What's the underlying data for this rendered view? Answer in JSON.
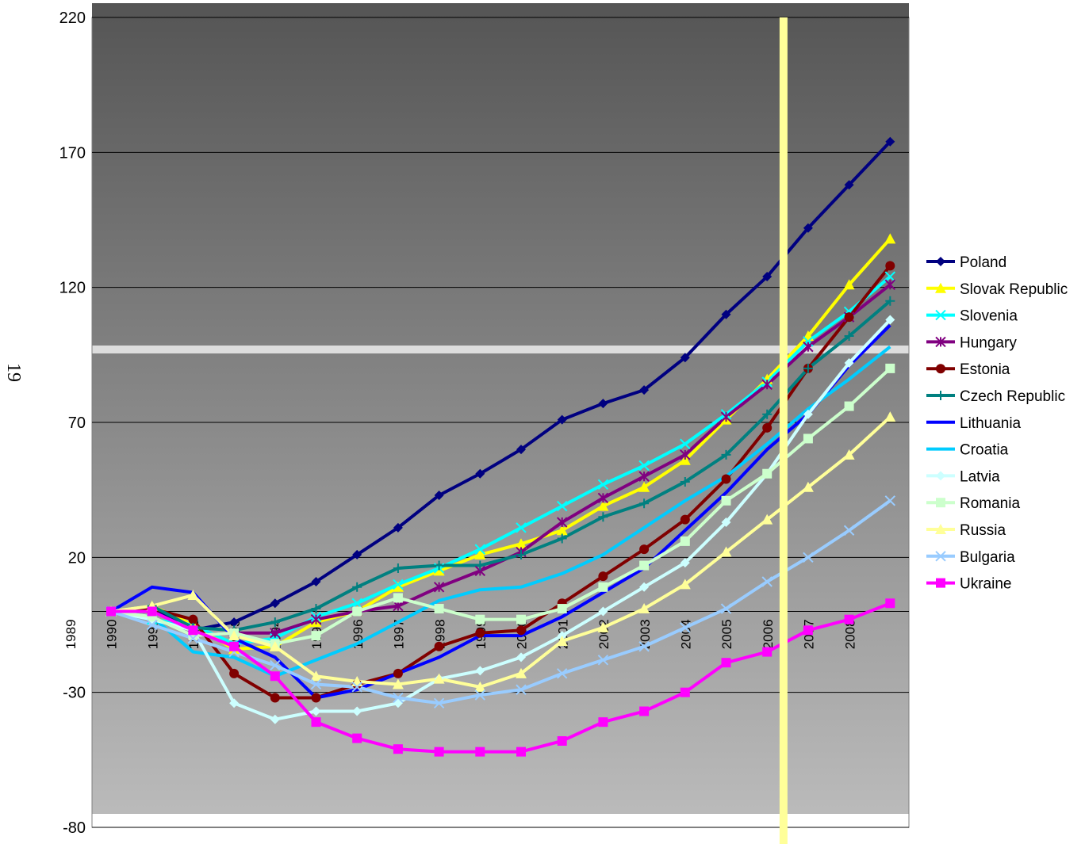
{
  "page_number": "19",
  "chart_data": {
    "type": "line",
    "title": "",
    "xlabel": "",
    "ylabel": "",
    "ylim": [
      -80,
      220
    ],
    "yticks": [
      220,
      170,
      120,
      70,
      20,
      -30,
      -80
    ],
    "x_tick_labels": [
      "1989",
      "1990",
      "1991",
      "1992",
      "1993",
      "1994",
      "1995",
      "1996",
      "1997",
      "1998",
      "1999",
      "2000",
      "2001",
      "2002",
      "2003",
      "2004",
      "2005",
      "2006",
      "2007",
      "2008"
    ],
    "x_points": [
      "1990",
      "1991",
      "1992",
      "1993",
      "1994",
      "1995",
      "1996",
      "1997",
      "1998",
      "1999",
      "2000",
      "2001",
      "2002",
      "2003",
      "2004",
      "2005",
      "2006",
      "2007",
      "2008",
      "2009"
    ],
    "grid": true,
    "legend_position": "right",
    "highlight_x": "2006",
    "colors": {
      "highlight_band": "#ffff99",
      "background_top": "#555555",
      "background_bottom": "#bcbcbc"
    },
    "series": [
      {
        "name": "Poland",
        "color": "#000080",
        "marker": "diamond",
        "values": [
          0,
          1,
          -7,
          -4,
          3,
          11,
          21,
          31,
          43,
          51,
          60,
          71,
          77,
          82,
          94,
          110,
          124,
          142,
          158,
          174
        ]
      },
      {
        "name": "Slovak Republic",
        "color": "#ffff00",
        "marker": "triangle",
        "values": [
          0,
          2,
          -5,
          -14,
          -13,
          -4,
          0,
          9,
          15,
          21,
          25,
          30,
          39,
          46,
          56,
          71,
          86,
          102,
          121,
          138
        ]
      },
      {
        "name": "Slovenia",
        "color": "#00ffff",
        "marker": "x",
        "values": [
          0,
          -3,
          -5,
          -12,
          -10,
          -2,
          3,
          10,
          16,
          23,
          31,
          39,
          47,
          54,
          62,
          73,
          85,
          100,
          111,
          124
        ]
      },
      {
        "name": "Hungary",
        "color": "#800080",
        "marker": "star",
        "values": [
          0,
          -2,
          -9,
          -8,
          -8,
          -3,
          0,
          2,
          9,
          15,
          22,
          33,
          42,
          50,
          58,
          72,
          84,
          98,
          109,
          121
        ]
      },
      {
        "name": "Estonia",
        "color": "#800000",
        "marker": "circle",
        "values": [
          0,
          1,
          -3,
          -23,
          -32,
          -32,
          -27,
          -23,
          -13,
          -8,
          -7,
          3,
          13,
          23,
          34,
          49,
          68,
          90,
          109,
          128
        ]
      },
      {
        "name": "Czech Republic",
        "color": "#008080",
        "marker": "plus",
        "values": [
          0,
          2,
          -6,
          -7,
          -4,
          1,
          9,
          16,
          17,
          17,
          21,
          27,
          35,
          40,
          48,
          58,
          73,
          90,
          102,
          115
        ]
      },
      {
        "name": "Lithuania",
        "color": "#0000ff",
        "marker": "none",
        "values": [
          0,
          9,
          7,
          -10,
          -17,
          -32,
          -29,
          -23,
          -17,
          -9,
          -9,
          -2,
          7,
          16,
          30,
          44,
          60,
          73,
          91,
          106
        ]
      },
      {
        "name": "Croatia",
        "color": "#00ccff",
        "marker": "none",
        "values": [
          0,
          -2,
          -15,
          -17,
          -24,
          -18,
          -12,
          -4,
          4,
          8,
          9,
          14,
          21,
          31,
          41,
          50,
          62,
          75,
          86,
          98
        ]
      },
      {
        "name": "Latvia",
        "color": "#ccffff",
        "marker": "diamond",
        "values": [
          0,
          -3,
          -7,
          -34,
          -40,
          -37,
          -37,
          -34,
          -25,
          -22,
          -17,
          -9,
          0,
          9,
          18,
          33,
          51,
          73,
          92,
          108
        ]
      },
      {
        "name": "Romania",
        "color": "#ccffcc",
        "marker": "square",
        "values": [
          0,
          -2,
          -9,
          -8,
          -12,
          -9,
          0,
          5,
          1,
          -3,
          -3,
          1,
          9,
          17,
          26,
          41,
          51,
          64,
          76,
          90
        ]
      },
      {
        "name": "Russia",
        "color": "#ffff99",
        "marker": "triangle",
        "values": [
          0,
          2,
          6,
          -9,
          -13,
          -24,
          -26,
          -27,
          -25,
          -28,
          -23,
          -11,
          -6,
          1,
          10,
          22,
          34,
          46,
          58,
          72
        ]
      },
      {
        "name": "Bulgaria",
        "color": "#99ccff",
        "marker": "x",
        "values": [
          0,
          -5,
          -10,
          -15,
          -20,
          -27,
          -28,
          -32,
          -34,
          -31,
          -29,
          -23,
          -18,
          -13,
          -6,
          1,
          11,
          20,
          30,
          41
        ]
      },
      {
        "name": "Ukraine",
        "color": "#ff00ff",
        "marker": "square",
        "values": [
          0,
          0,
          -7,
          -13,
          -24,
          -41,
          -47,
          -51,
          -52,
          -52,
          -52,
          -48,
          -41,
          -37,
          -30,
          -19,
          -15,
          -7,
          -3,
          3
        ]
      }
    ]
  }
}
